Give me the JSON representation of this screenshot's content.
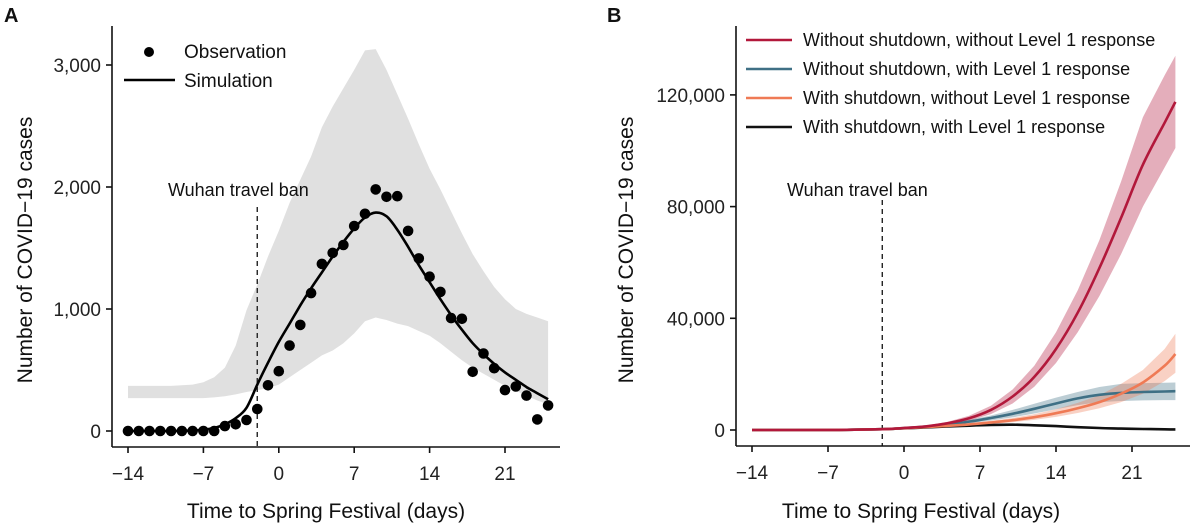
{
  "chart_data": [
    {
      "panel": "A",
      "type": "scatter",
      "panel_label": "A",
      "xlabel": "Time to Spring Festival (days)",
      "ylabel": "Number of COVID−19 cases",
      "xlim": [
        -14,
        25
      ],
      "ylim": [
        0,
        3000
      ],
      "xticks": [
        -14,
        -7,
        0,
        7,
        14,
        21
      ],
      "xtick_labels": [
        "−14",
        "−7",
        "0",
        "7",
        "14",
        "21"
      ],
      "yticks": [
        0,
        1000,
        2000,
        3000
      ],
      "ytick_labels": [
        "0",
        "1,000",
        "2,000",
        "3,000"
      ],
      "grid": false,
      "legend": {
        "placement": "top-left",
        "entries": [
          {
            "label": "Observation",
            "marker": "point"
          },
          {
            "label": "Simulation",
            "marker": "line"
          }
        ]
      },
      "annotation": {
        "text": "Wuhan travel ban",
        "x": -2
      },
      "observation": {
        "x": [
          -14,
          -13,
          -12,
          -11,
          -10,
          -9,
          -8,
          -7,
          -6,
          -5,
          -4,
          -3,
          -2,
          -1,
          0,
          1,
          2,
          3,
          4,
          5,
          6,
          7,
          8,
          9,
          10,
          11,
          12,
          13,
          14,
          15,
          16,
          17,
          18,
          19,
          20,
          21,
          22,
          23,
          24,
          25
        ],
        "y": [
          0,
          0,
          0,
          0,
          0,
          0,
          0,
          0,
          0,
          40,
          55,
          90,
          180,
          375,
          490,
          700,
          870,
          1130,
          1370,
          1460,
          1525,
          1680,
          1780,
          1980,
          1920,
          1925,
          1640,
          1415,
          1265,
          1140,
          925,
          920,
          485,
          635,
          515,
          335,
          365,
          290,
          95,
          210
        ]
      },
      "simulation": {
        "x": [
          -14,
          -12,
          -10,
          -8,
          -7,
          -6,
          -5,
          -4,
          -3,
          -2,
          -1,
          0,
          1,
          2,
          3,
          4,
          5,
          6,
          7,
          8,
          9,
          10,
          11,
          12,
          13,
          14,
          15,
          16,
          17,
          18,
          19,
          20,
          21,
          22,
          23,
          24,
          25
        ],
        "y": [
          0,
          0,
          0,
          5,
          10,
          25,
          55,
          105,
          190,
          380,
          560,
          730,
          880,
          1030,
          1170,
          1300,
          1430,
          1550,
          1660,
          1750,
          1790,
          1760,
          1650,
          1510,
          1360,
          1220,
          1080,
          950,
          830,
          720,
          630,
          550,
          480,
          420,
          360,
          310,
          260
        ]
      },
      "band": {
        "x": [
          -14,
          -12,
          -10,
          -8,
          -7,
          -6,
          -5,
          -4,
          -3,
          -2,
          -1,
          0,
          1,
          2,
          3,
          4,
          5,
          6,
          7,
          8,
          9,
          10,
          11,
          12,
          13,
          14,
          15,
          16,
          17,
          18,
          19,
          20,
          21,
          22,
          23,
          24,
          25
        ],
        "lower": [
          270,
          270,
          270,
          270,
          270,
          275,
          285,
          300,
          320,
          335,
          350,
          380,
          440,
          500,
          560,
          620,
          660,
          720,
          800,
          900,
          930,
          910,
          880,
          860,
          820,
          780,
          720,
          650,
          580,
          520,
          470,
          420,
          370,
          330,
          290,
          250,
          220
        ],
        "upper": [
          370,
          370,
          370,
          380,
          400,
          440,
          520,
          700,
          990,
          1200,
          1430,
          1640,
          1870,
          2060,
          2250,
          2490,
          2660,
          2810,
          2960,
          3120,
          3130,
          2960,
          2760,
          2560,
          2350,
          2150,
          1980,
          1800,
          1620,
          1450,
          1310,
          1180,
          1080,
          1000,
          960,
          930,
          900
        ]
      },
      "colors": {
        "points": "#000000",
        "line": "#000000",
        "band": "#e0e0e0"
      }
    },
    {
      "panel": "B",
      "type": "line",
      "panel_label": "B",
      "xlabel": "Time to Spring Festival (days)",
      "ylabel": "Number of COVID−19 cases",
      "xlim": [
        -14,
        25
      ],
      "ylim": [
        0,
        135000
      ],
      "xticks": [
        -14,
        -7,
        0,
        7,
        14,
        21
      ],
      "xtick_labels": [
        "−14",
        "−7",
        "0",
        "7",
        "14",
        "21"
      ],
      "yticks": [
        0,
        40000,
        80000,
        120000
      ],
      "ytick_labels": [
        "0",
        "40,000",
        "80,000",
        "120,000"
      ],
      "grid": false,
      "legend": {
        "placement": "top-left"
      },
      "annotation": {
        "text": "Wuhan travel ban",
        "x": -2
      },
      "x": [
        -14,
        -10,
        -6,
        -2,
        0,
        2,
        4,
        6,
        8,
        10,
        12,
        14,
        16,
        18,
        20,
        22,
        24,
        25
      ],
      "series": [
        {
          "name": "Without shutdown, without Level 1 response",
          "color": "#b2183b",
          "values": [
            0,
            0,
            50,
            300,
            700,
            1300,
            2400,
            4200,
            7200,
            12000,
            19000,
            29000,
            42000,
            58000,
            76000,
            95000,
            110000,
            117500
          ],
          "lower": [
            0,
            0,
            40,
            240,
            560,
            1050,
            1900,
            3300,
            5700,
            9500,
            15500,
            24000,
            35000,
            48000,
            63000,
            80000,
            94000,
            101000
          ],
          "upper": [
            0,
            0,
            60,
            360,
            840,
            1600,
            2900,
            5100,
            8700,
            14500,
            23000,
            35000,
            50000,
            68000,
            89000,
            112000,
            127000,
            134000
          ]
        },
        {
          "name": "Without shutdown, with Level 1 response",
          "color": "#3f7085",
          "values": [
            0,
            0,
            50,
            300,
            700,
            1200,
            2000,
            3000,
            4300,
            5800,
            7600,
            9500,
            11300,
            12600,
            13300,
            13600,
            13800,
            13900
          ],
          "lower": [
            0,
            0,
            40,
            240,
            560,
            950,
            1600,
            2400,
            3400,
            4500,
            5900,
            7400,
            8900,
            10000,
            10400,
            10600,
            10700,
            10700
          ],
          "upper": [
            0,
            0,
            60,
            360,
            840,
            1450,
            2400,
            3600,
            5200,
            7200,
            9400,
            11600,
            13600,
            15400,
            16500,
            16800,
            16900,
            17000
          ]
        },
        {
          "name": "With shutdown, without Level 1 response",
          "color": "#ef7a55",
          "values": [
            0,
            0,
            50,
            300,
            650,
            1050,
            1500,
            2000,
            2700,
            3500,
            4600,
            6000,
            7800,
            10000,
            13000,
            17000,
            23000,
            27200
          ],
          "lower": [
            0,
            0,
            40,
            240,
            520,
            840,
            1200,
            1600,
            2100,
            2800,
            3600,
            4700,
            6100,
            7800,
            10000,
            13000,
            17500,
            20500
          ],
          "upper": [
            0,
            0,
            60,
            360,
            780,
            1260,
            1800,
            2400,
            3300,
            4300,
            5700,
            7400,
            9700,
            12400,
            16500,
            21500,
            29000,
            34500
          ]
        },
        {
          "name": "With shutdown, with Level 1 response",
          "color": "#111111",
          "values": [
            0,
            0,
            50,
            300,
            600,
            900,
            1250,
            1550,
            1800,
            1900,
            1700,
            1400,
            1000,
            700,
            500,
            350,
            250,
            200
          ]
        }
      ]
    }
  ]
}
